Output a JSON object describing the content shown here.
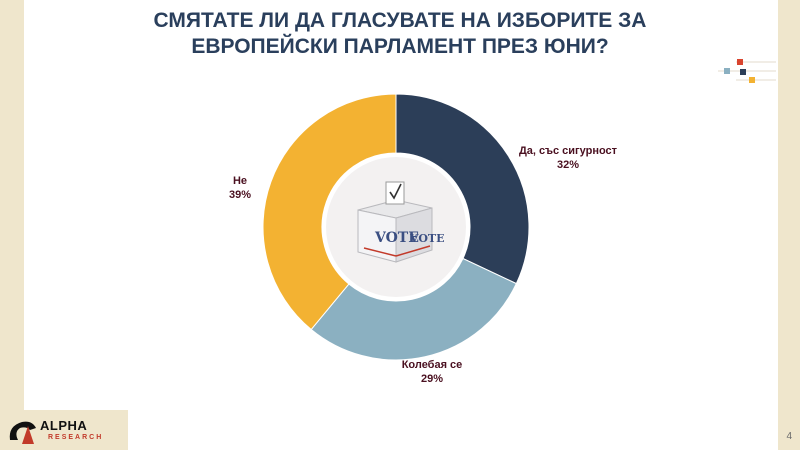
{
  "slide": {
    "title_line1": "СМЯТАТЕ ЛИ ДА ГЛАСУВАТЕ НА ИЗБОРИТЕ ЗА",
    "title_line2": "ЕВРОПЕЙСКИ ПАРЛАМЕНТ ПРЕЗ ЮНИ?",
    "page_number": "4"
  },
  "center_icon": {
    "name": "ballot-box-icon",
    "text": "VOTE"
  },
  "logo": {
    "name": "alpha-research-logo",
    "text": "ALPHA",
    "subtext": "RESEARCH"
  },
  "colors": {
    "title": "#2a3f5c",
    "label": "#4a1020",
    "background_side": "#efe6cc"
  },
  "chart_data": {
    "type": "pie",
    "donut": true,
    "title": "СМЯТАТЕ ЛИ ДА ГЛАСУВАТЕ НА ИЗБОРИТЕ ЗА ЕВРОПЕЙСКИ ПАРЛАМЕНТ ПРЕЗ ЮНИ?",
    "categories": [
      "Да, със сигурност",
      "Колебая се",
      "Не"
    ],
    "values": [
      32,
      29,
      39
    ],
    "value_labels": [
      "32%",
      "29%",
      "39%"
    ],
    "colors": [
      "#2c3e58",
      "#8bb0c1",
      "#f3b232"
    ],
    "start_angle_deg": 0,
    "direction": "clockwise",
    "legend": "none"
  }
}
